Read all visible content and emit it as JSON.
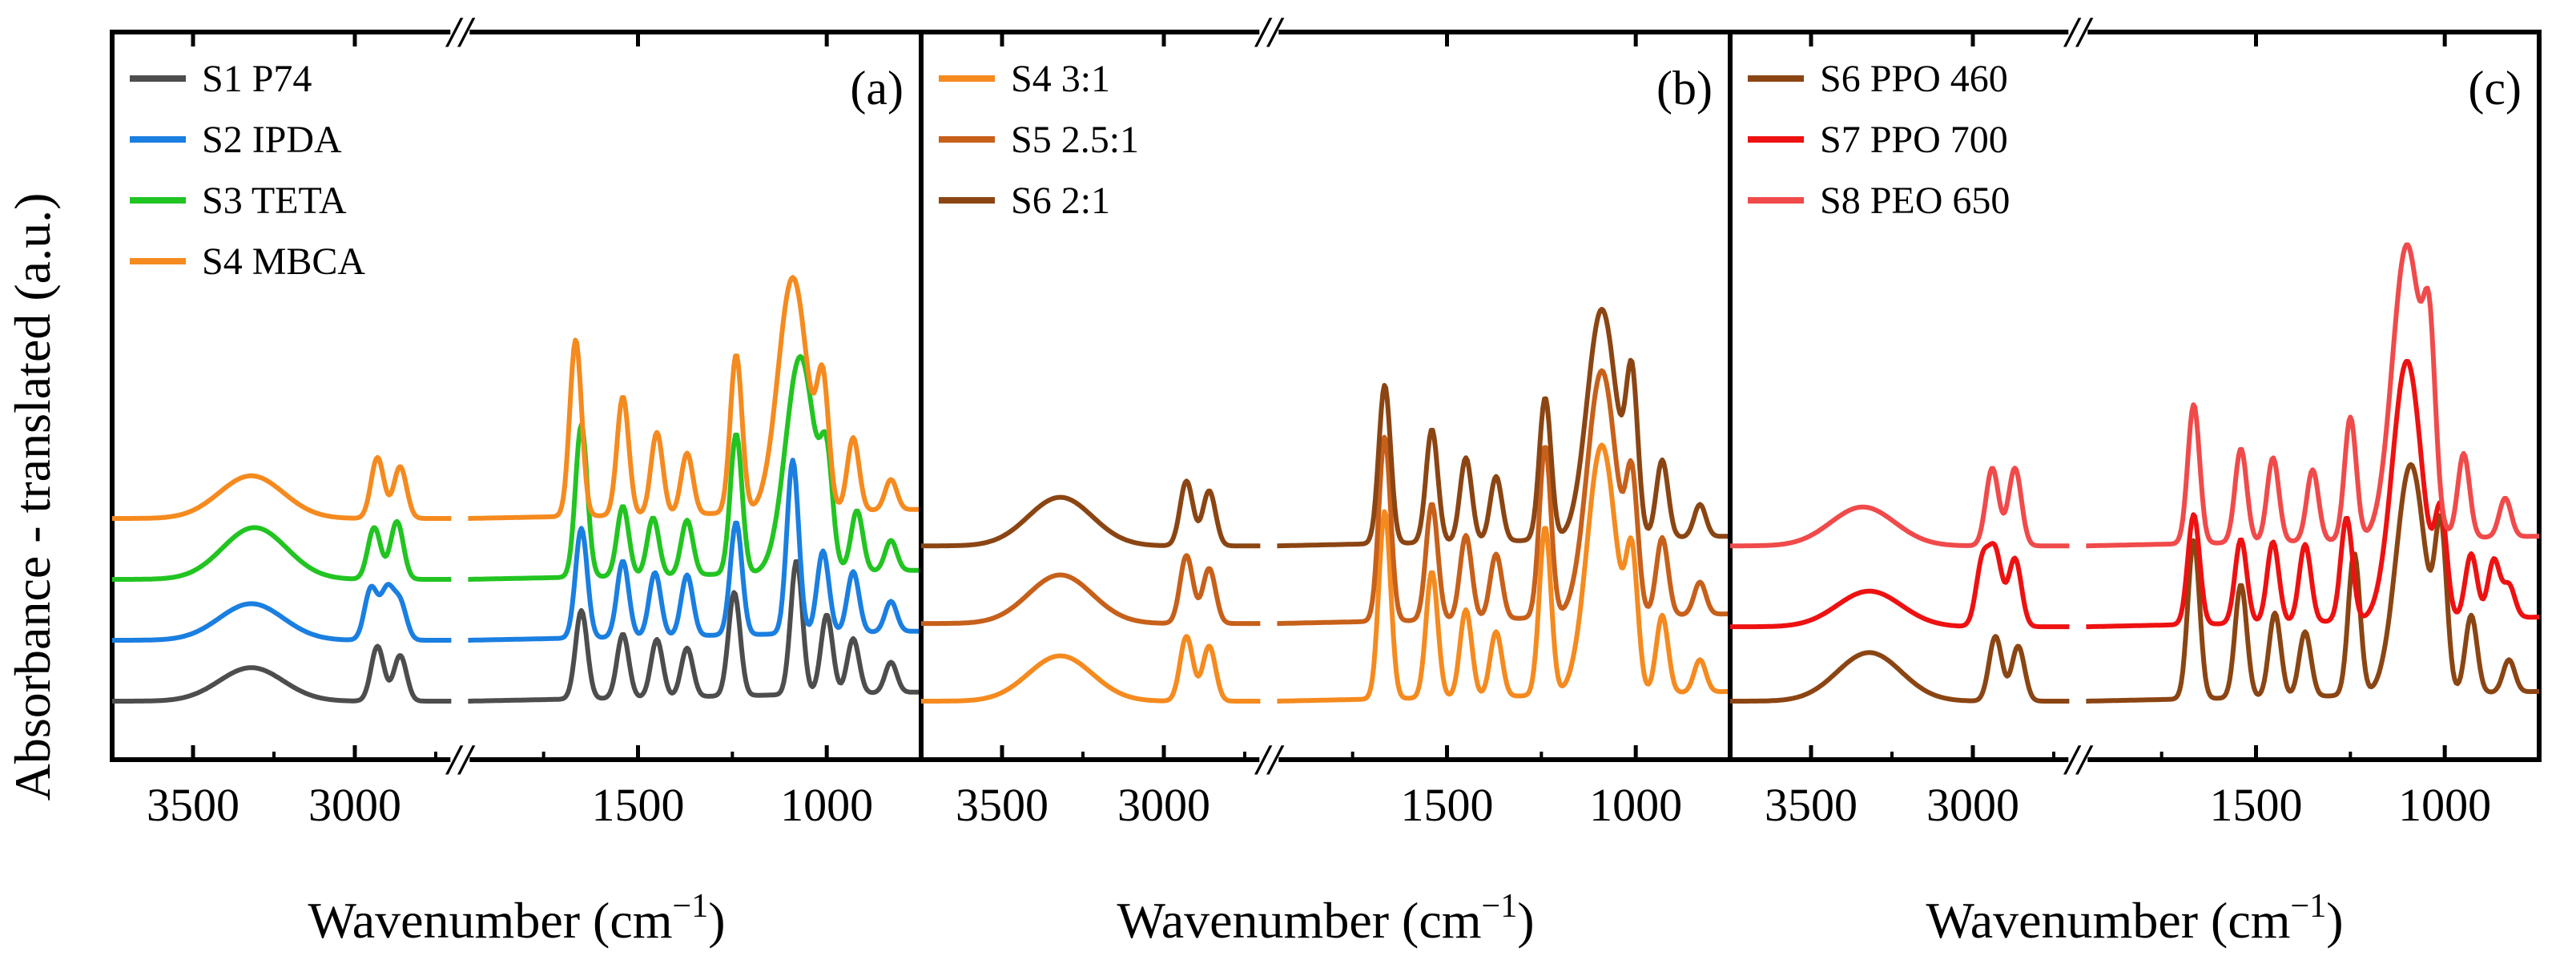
{
  "figure": {
    "ylabel": "Absorbance - translated (a.u.)",
    "xlabel_main": "Wavenumber (cm",
    "xlabel_sup": "−1",
    "xlabel_close": ")",
    "break_symbol": "//"
  },
  "chart_data": [
    {
      "type": "line",
      "panel": "(a)",
      "title": "",
      "xlabel": "Wavenumber (cm−1)",
      "ylabel": "Absorbance - translated (a.u.)",
      "x_axis": "reversed, broken between 2700 and 1950",
      "x_ticks": [
        "3500",
        "3000",
        "1500",
        "1000"
      ],
      "legend_position": "top-left",
      "series": [
        {
          "name": "S1 P74",
          "color": "#4d4d4d",
          "offset": 0.0,
          "peaks": [
            [
              3320,
              0.55
            ],
            [
              2930,
              0.9
            ],
            [
              2860,
              0.75
            ],
            [
              1650,
              1.45
            ],
            [
              1540,
              1.05
            ],
            [
              1450,
              0.95
            ],
            [
              1370,
              0.8
            ],
            [
              1245,
              1.7
            ],
            [
              1080,
              2.2
            ],
            [
              1000,
              1.3
            ],
            [
              930,
              0.9
            ],
            [
              830,
              0.5
            ]
          ]
        },
        {
          "name": "S2 IPDA",
          "color": "#1a7fe0",
          "offset": 1.0,
          "peaks": [
            [
              3320,
              0.6
            ],
            [
              2950,
              0.85
            ],
            [
              2900,
              0.8
            ],
            [
              2860,
              0.6
            ],
            [
              1650,
              1.8
            ],
            [
              1540,
              1.25
            ],
            [
              1455,
              1.05
            ],
            [
              1370,
              1.0
            ],
            [
              1240,
              1.85
            ],
            [
              1090,
              2.85
            ],
            [
              1010,
              1.35
            ],
            [
              930,
              1.0
            ],
            [
              830,
              0.5
            ]
          ]
        },
        {
          "name": "S3 TETA",
          "color": "#22c422",
          "offset": 2.0,
          "peaks": [
            [
              3310,
              0.85
            ],
            [
              2940,
              0.85
            ],
            [
              2870,
              0.95
            ],
            [
              1650,
              2.5
            ],
            [
              1540,
              1.15
            ],
            [
              1460,
              0.95
            ],
            [
              1370,
              0.9
            ],
            [
              1240,
              2.3
            ],
            [
              1070,
              3.55
            ],
            [
              1000,
              1.5
            ],
            [
              920,
              1.0
            ],
            [
              830,
              0.5
            ]
          ]
        },
        {
          "name": "S4 MBCA",
          "color": "#f58a1f",
          "offset": 3.0,
          "peaks": [
            [
              3320,
              0.7
            ],
            [
              2930,
              1.0
            ],
            [
              2860,
              0.85
            ],
            [
              1665,
              2.9
            ],
            [
              1540,
              1.95
            ],
            [
              1450,
              1.35
            ],
            [
              1370,
              1.0
            ],
            [
              1240,
              2.6
            ],
            [
              1090,
              3.85
            ],
            [
              1010,
              1.9
            ],
            [
              930,
              1.2
            ],
            [
              830,
              0.5
            ]
          ]
        }
      ]
    },
    {
      "type": "line",
      "panel": "(b)",
      "title": "",
      "xlabel": "Wavenumber (cm−1)",
      "ylabel": "",
      "x_axis": "reversed, broken between 2700 and 1950",
      "x_ticks": [
        "3500",
        "3000",
        "1500",
        "1000"
      ],
      "legend_position": "top-left",
      "series": [
        {
          "name": "S4 3:1",
          "color": "#f58a1f",
          "offset": 0.0,
          "peaks": [
            [
              3320,
              0.7
            ],
            [
              2930,
              1.0
            ],
            [
              2860,
              0.85
            ],
            [
              1665,
              2.9
            ],
            [
              1540,
              1.95
            ],
            [
              1450,
              1.35
            ],
            [
              1370,
              1.0
            ],
            [
              1240,
              2.6
            ],
            [
              1090,
              3.85
            ],
            [
              1010,
              1.9
            ],
            [
              930,
              1.2
            ],
            [
              830,
              0.5
            ]
          ]
        },
        {
          "name": "S5 2.5:1",
          "color": "#c7601a",
          "offset": 1.2,
          "peaks": [
            [
              3320,
              0.75
            ],
            [
              2930,
              1.05
            ],
            [
              2860,
              0.85
            ],
            [
              1665,
              2.85
            ],
            [
              1540,
              1.8
            ],
            [
              1450,
              1.3
            ],
            [
              1370,
              1.0
            ],
            [
              1240,
              2.65
            ],
            [
              1090,
              3.8
            ],
            [
              1010,
              1.9
            ],
            [
              930,
              1.2
            ],
            [
              830,
              0.5
            ]
          ]
        },
        {
          "name": "S6 2:1",
          "color": "#8b4513",
          "offset": 2.4,
          "peaks": [
            [
              3320,
              0.75
            ],
            [
              2930,
              1.0
            ],
            [
              2860,
              0.85
            ],
            [
              1665,
              2.45
            ],
            [
              1540,
              1.75
            ],
            [
              1450,
              1.3
            ],
            [
              1370,
              1.0
            ],
            [
              1240,
              2.2
            ],
            [
              1090,
              3.55
            ],
            [
              1010,
              2.3
            ],
            [
              930,
              1.2
            ],
            [
              830,
              0.5
            ]
          ]
        }
      ]
    },
    {
      "type": "line",
      "panel": "(c)",
      "title": "",
      "xlabel": "Wavenumber (cm−1)",
      "ylabel": "",
      "x_axis": "reversed, broken between 2700 and 1950",
      "x_ticks": [
        "3500",
        "3000",
        "1500",
        "1000"
      ],
      "legend_position": "top-left",
      "series": [
        {
          "name": "S6 PPO 460",
          "color": "#8b4513",
          "offset": 0.0,
          "peaks": [
            [
              3320,
              0.75
            ],
            [
              2930,
              1.0
            ],
            [
              2860,
              0.85
            ],
            [
              1665,
              2.45
            ],
            [
              1540,
              1.75
            ],
            [
              1450,
              1.3
            ],
            [
              1370,
              1.0
            ],
            [
              1240,
              2.2
            ],
            [
              1090,
              3.55
            ],
            [
              1010,
              2.3
            ],
            [
              930,
              1.2
            ],
            [
              830,
              0.5
            ]
          ]
        },
        {
          "name": "S7 PPO 700",
          "color": "#ee1111",
          "offset": 1.15,
          "peaks": [
            [
              3320,
              0.55
            ],
            [
              2970,
              1.0
            ],
            [
              2930,
              1.1
            ],
            [
              2870,
              1.05
            ],
            [
              1665,
              1.7
            ],
            [
              1540,
              1.3
            ],
            [
              1455,
              1.25
            ],
            [
              1370,
              1.2
            ],
            [
              1260,
              1.6
            ],
            [
              1100,
              4.0
            ],
            [
              1010,
              1.5
            ],
            [
              930,
              1.0
            ],
            [
              870,
              0.9
            ],
            [
              830,
              0.5
            ]
          ]
        },
        {
          "name": "S8 PEO 650",
          "color": "#f04a4a",
          "offset": 2.4,
          "peaks": [
            [
              3340,
              0.6
            ],
            [
              2940,
              1.2
            ],
            [
              2870,
              1.2
            ],
            [
              1665,
              2.15
            ],
            [
              1540,
              1.45
            ],
            [
              1455,
              1.3
            ],
            [
              1350,
              1.1
            ],
            [
              1250,
              1.9
            ],
            [
              1100,
              4.55
            ],
            [
              1040,
              2.3
            ],
            [
              950,
              1.3
            ],
            [
              840,
              0.6
            ]
          ]
        }
      ]
    }
  ]
}
